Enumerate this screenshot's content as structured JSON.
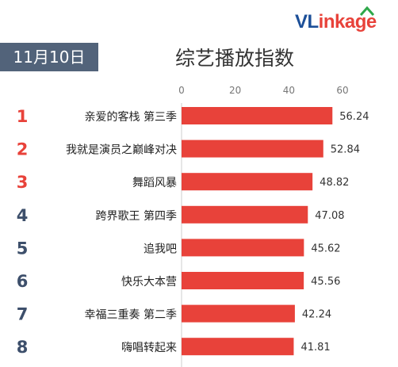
{
  "logo": {
    "prefix": "VL",
    "rest": "inkage",
    "accent_colors": [
      "#1c4f98",
      "#e8423a",
      "#2fa84a"
    ]
  },
  "date_badge": "11月10日",
  "chart_data": {
    "type": "bar",
    "orientation": "horizontal",
    "title": "综艺播放指数",
    "xlim": [
      0,
      60
    ],
    "xticks": [
      0,
      20,
      40,
      60
    ],
    "grid": false,
    "bar_color": "#e8423a",
    "rank_colors": {
      "top3": "#e8423a",
      "rest": "#3d4f6b"
    },
    "ranks": [
      "1",
      "2",
      "3",
      "4",
      "5",
      "6",
      "7",
      "8"
    ],
    "categories": [
      "亲爱的客栈 第三季",
      "我就是演员之巅峰对决",
      "舞蹈风暴",
      "跨界歌王 第四季",
      "追我吧",
      "快乐大本营",
      "幸福三重奏 第二季",
      "嗨唱转起来"
    ],
    "values": [
      56.24,
      52.84,
      48.82,
      47.08,
      45.62,
      45.56,
      42.24,
      41.81
    ],
    "value_labels": [
      "56.24",
      "52.84",
      "48.82",
      "47.08",
      "45.62",
      "45.56",
      "42.24",
      "41.81"
    ]
  }
}
